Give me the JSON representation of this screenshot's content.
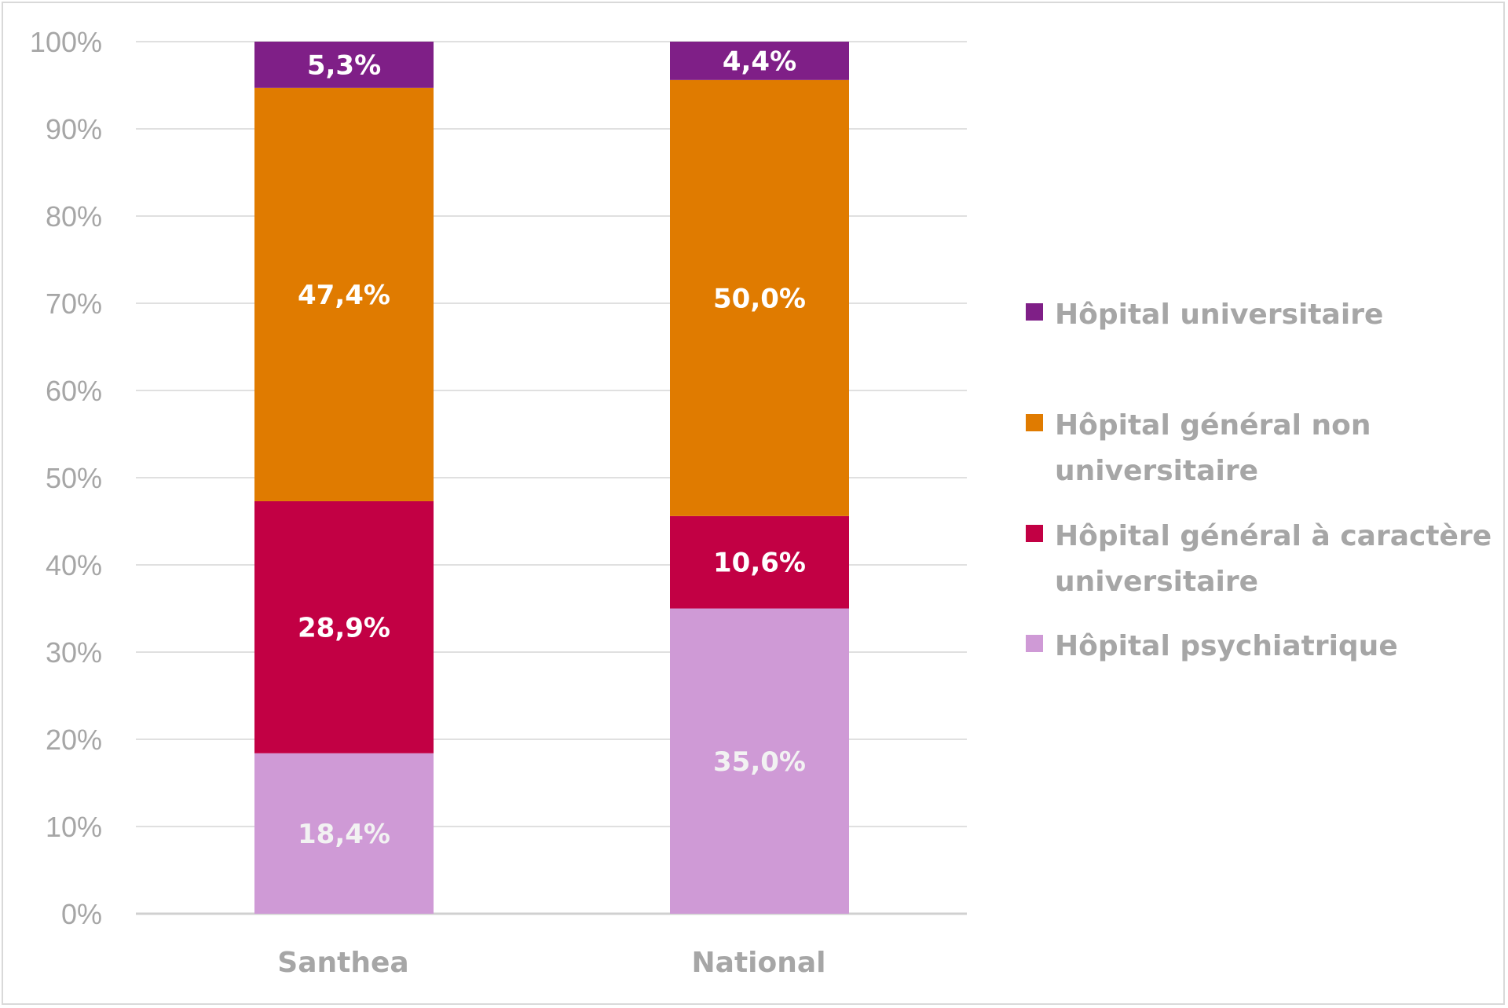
{
  "chart_data": {
    "type": "bar",
    "stacked": true,
    "title": "",
    "xlabel": "",
    "ylabel": "",
    "ylim": [
      0,
      100
    ],
    "y_ticks": [
      "0%",
      "10%",
      "20%",
      "30%",
      "40%",
      "50%",
      "60%",
      "70%",
      "80%",
      "90%",
      "100%"
    ],
    "grid": true,
    "legend_position": "right",
    "categories": [
      "Santhea",
      "National"
    ],
    "series": [
      {
        "name": "Hôpital psychiatrique",
        "color": "#cf9ad6",
        "label_color": "#f2f2f2",
        "values": [
          18.4,
          35.0
        ],
        "labels": [
          "18,4%",
          "35,0%"
        ]
      },
      {
        "name": "Hôpital général à caractère universitaire",
        "color": "#c20044",
        "label_color": "#ffffff",
        "values": [
          28.9,
          10.6
        ],
        "labels": [
          "28,9%",
          "10,6%"
        ]
      },
      {
        "name": "Hôpital général non universitaire",
        "color": "#e07b00",
        "label_color": "#ffffff",
        "values": [
          47.4,
          50.0
        ],
        "labels": [
          "47,4%",
          "50,0%"
        ]
      },
      {
        "name": "Hôpital universitaire",
        "color": "#7f1f87",
        "label_color": "#ffffff",
        "values": [
          5.3,
          4.4
        ],
        "labels": [
          "5,3%",
          "4,4%"
        ]
      }
    ],
    "legend": [
      {
        "lines": [
          "Hôpital universitaire"
        ],
        "color": "#7f1f87"
      },
      {
        "lines": [
          "Hôpital général non",
          "universitaire"
        ],
        "color": "#e07b00"
      },
      {
        "lines": [
          "Hôpital général à caractère",
          "universitaire"
        ],
        "color": "#c20044"
      },
      {
        "lines": [
          "Hôpital psychiatrique"
        ],
        "color": "#cf9ad6"
      }
    ]
  }
}
